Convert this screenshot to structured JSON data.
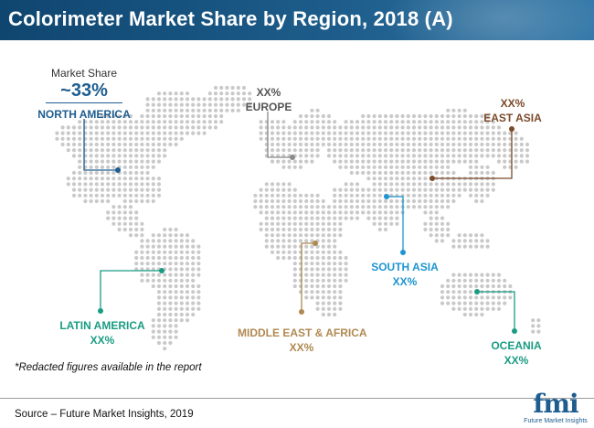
{
  "title": "Colorimeter Market Share by Region, 2018 (A)",
  "colors": {
    "title_bar": "#1d5c8a",
    "map_dots": "#c9c9c9",
    "north_america": "#1e5d8f",
    "europe": "#8a8a8a",
    "east_asia": "#7b4a2a",
    "south_asia": "#1e95d0",
    "latin_america": "#1a9c83",
    "middle_east_africa": "#b08952",
    "oceania": "#1a9c83"
  },
  "regions": {
    "north_america": {
      "label": "NORTH AMERICA",
      "market_share_caption": "Market Share",
      "value": "~33%"
    },
    "europe": {
      "label": "EUROPE",
      "value": "XX%"
    },
    "east_asia": {
      "label": "EAST ASIA",
      "value": "XX%"
    },
    "south_asia": {
      "label": "SOUTH ASIA",
      "value": "XX%"
    },
    "latin_america": {
      "label": "LATIN AMERICA",
      "value": "XX%"
    },
    "middle_east_africa": {
      "label": "MIDDLE EAST & AFRICA",
      "value": "XX%"
    },
    "oceania": {
      "label": "OCEANIA",
      "value": "XX%"
    }
  },
  "footnote": "*Redacted figures available in the report",
  "source": "Source – Future Market Insights, 2019",
  "logo": {
    "mark": "fmi",
    "tagline": "Future Market Insights"
  }
}
